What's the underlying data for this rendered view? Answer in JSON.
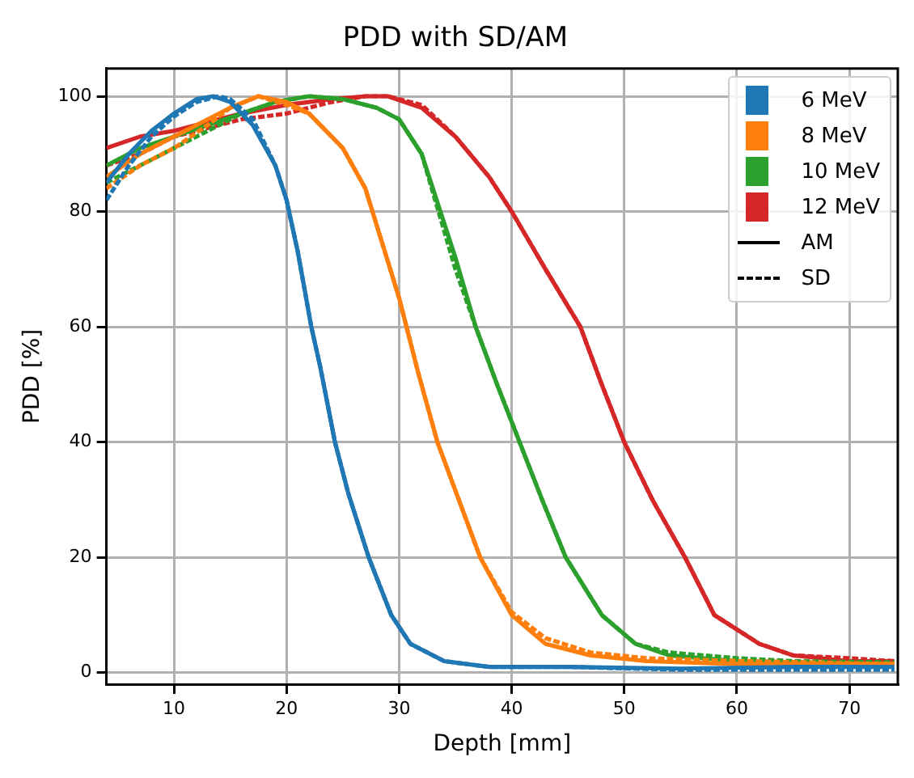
{
  "chart_data": {
    "type": "line",
    "title": "PDD with SD/AM",
    "xlabel": "Depth [mm]",
    "ylabel": "PDD [%]",
    "xlim": [
      4,
      74.3
    ],
    "ylim": [
      -2,
      104.8
    ],
    "xticks": [
      10,
      20,
      30,
      40,
      50,
      60,
      70
    ],
    "yticks": [
      0,
      20,
      40,
      60,
      80,
      100
    ],
    "grid": true,
    "legend": "top right",
    "marker": "none",
    "annotations": [
      "AM",
      "SD"
    ],
    "series": [
      {
        "name": "6 MeV",
        "color": "#1f77b4",
        "line_style": "solid",
        "x": [
          4,
          6,
          8,
          10,
          12,
          13.5,
          15,
          17,
          19,
          20,
          21,
          22.2,
          23,
          24.3,
          25.5,
          27.3,
          29.3,
          31,
          34,
          38,
          45,
          55,
          65,
          74
        ],
        "values": [
          85,
          90,
          94,
          97,
          99.5,
          100,
          99,
          95,
          88,
          82,
          73,
          60,
          53,
          40,
          31,
          20,
          10,
          5,
          2,
          1,
          1,
          0.7,
          1,
          1
        ]
      },
      {
        "color": "#1f77b4",
        "line_style": "dashed",
        "x": [
          4,
          6,
          8,
          10,
          12,
          14,
          15,
          17,
          19,
          20,
          21,
          22.2,
          23,
          24.3,
          25.5,
          27.3,
          29.3,
          31,
          34,
          38,
          45,
          55,
          65,
          74
        ],
        "values": [
          82,
          88,
          93,
          96.5,
          99,
          100,
          99.5,
          96,
          88,
          82,
          73,
          60,
          53,
          40,
          31,
          20,
          10,
          5,
          2,
          1,
          1,
          0.5,
          0.5,
          0.5
        ]
      },
      {
        "name": "8 MeV",
        "color": "#ff7f0e",
        "line_style": "solid",
        "x": [
          4,
          7,
          10,
          13,
          15,
          17.5,
          20,
          22,
          25,
          27,
          30,
          31.7,
          33.4,
          35.3,
          37.2,
          40,
          43,
          47,
          52,
          60,
          74
        ],
        "values": [
          86,
          90,
          93,
          96,
          98,
          100,
          99,
          97,
          91,
          84,
          65,
          52,
          40,
          30,
          20,
          10,
          5,
          3,
          2,
          1.5,
          1.5
        ]
      },
      {
        "color": "#ff7f0e",
        "line_style": "dashed",
        "x": [
          4,
          7,
          10,
          13,
          15,
          17.5,
          20,
          22,
          25,
          27,
          30,
          31.7,
          33.4,
          35.3,
          37.2,
          40,
          43,
          47,
          52,
          60,
          74
        ],
        "values": [
          84,
          88,
          91,
          95,
          98,
          100,
          98.5,
          97,
          91,
          84,
          65,
          52,
          40,
          30,
          20,
          10.5,
          6,
          3.5,
          2.5,
          2,
          1.5
        ]
      },
      {
        "name": "10 MeV",
        "color": "#2ca02c",
        "line_style": "solid",
        "x": [
          4,
          7,
          10,
          13,
          16,
          19,
          22,
          25,
          28,
          30,
          32,
          35,
          36.8,
          38.7,
          40.7,
          42.7,
          44.8,
          48,
          51,
          54,
          60,
          65,
          74
        ],
        "values": [
          88,
          91,
          93,
          95,
          97,
          99,
          100,
          99.5,
          98,
          96,
          90,
          72,
          60,
          50,
          40,
          30,
          20,
          10,
          5,
          3,
          2,
          1.8,
          1.5
        ]
      },
      {
        "color": "#2ca02c",
        "line_style": "dashed",
        "x": [
          4,
          7,
          10,
          13,
          16,
          19,
          22,
          25,
          28,
          30,
          32,
          35,
          36.8,
          38.7,
          40.7,
          42.7,
          44.8,
          48,
          51,
          54,
          60,
          65,
          74
        ],
        "values": [
          85,
          88,
          91,
          94,
          97,
          99,
          100,
          99.5,
          98,
          96,
          90,
          70,
          60,
          50,
          40,
          30,
          20,
          10,
          5,
          3.5,
          2.5,
          2,
          1.8
        ]
      },
      {
        "name": "12 MeV",
        "color": "#d62728",
        "line_style": "solid",
        "x": [
          4,
          7,
          10,
          13,
          16,
          20,
          24,
          27,
          29,
          32,
          35,
          38,
          40,
          43,
          46.1,
          48,
          50,
          52.5,
          55.4,
          58,
          62,
          65,
          70,
          74
        ],
        "values": [
          91,
          93,
          94,
          95.5,
          97,
          98.5,
          99.5,
          100,
          100,
          98,
          93,
          86,
          80,
          70,
          60,
          50,
          40,
          30,
          20,
          10,
          5,
          3,
          2,
          2
        ]
      },
      {
        "color": "#d62728",
        "line_style": "dashed",
        "x": [
          4,
          7,
          10,
          13,
          16,
          20,
          24,
          27,
          29,
          32,
          35,
          38,
          40,
          43,
          46.1,
          48,
          50,
          52.5,
          55.4,
          58,
          62,
          65,
          70,
          74
        ],
        "values": [
          88,
          90,
          93,
          94.5,
          96,
          97,
          99,
          100,
          100,
          98.5,
          93,
          86,
          80,
          70,
          60,
          50,
          40,
          30,
          20,
          10,
          5,
          3,
          2.5,
          2
        ]
      }
    ]
  }
}
